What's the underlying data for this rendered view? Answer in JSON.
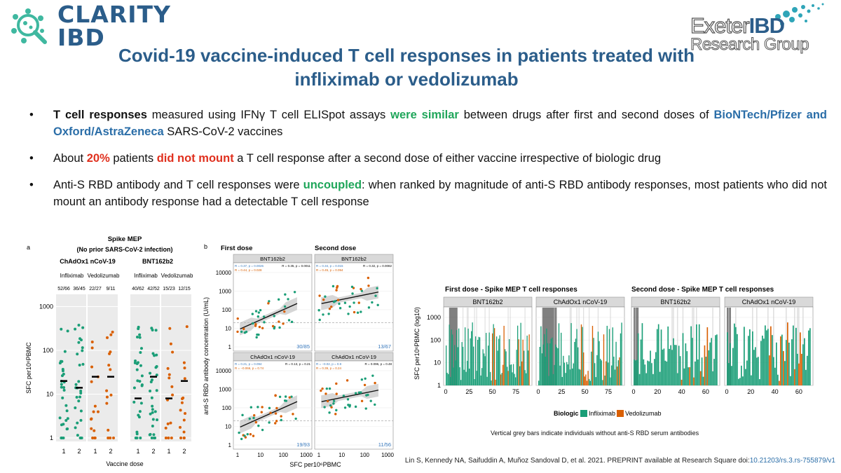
{
  "logo": {
    "line1": "CLARITY",
    "line2": "IBD"
  },
  "partner_logo": {
    "line1a": "Exeter",
    "line1b": "IBD",
    "line2": "Research Group"
  },
  "title": "Covid-19 vaccine-induced T cell responses in patients treated with infliximab or vedolizumab",
  "bullets": [
    {
      "parts": [
        "T cell responses",
        " measured using IFNγ T cell ELISpot assays ",
        "were similar",
        " between drugs after first and second doses of ",
        "BioNTech/Pfizer and Oxford/AstraZeneca",
        " SARS-CoV-2 vaccines"
      ]
    },
    {
      "parts": [
        "About ",
        "20%",
        " patients ",
        "did not mount",
        " a T cell response after a second dose of either vaccine irrespective of biologic drug"
      ]
    },
    {
      "parts": [
        "Anti-S RBD antibody and T cell responses were ",
        "uncoupled",
        ": when ranked by magnitude of anti-S RBD antibody responses, most patients who did not mount an antibody response had a detectable T cell response"
      ]
    }
  ],
  "colors": {
    "infliximab": "#1a9e77",
    "vedolizumab": "#d95f02",
    "title": "#2b5d8a"
  },
  "chart_data": [
    {
      "type": "scatter",
      "panel": "a",
      "title": "Spike MEP",
      "subtitle": "(No prior SARS-CoV-2 infection)",
      "groups": [
        "ChAdOx1 nCoV-19",
        "BNT162b2"
      ],
      "sub_labels": [
        "Infliximab",
        "Vedolizumab",
        "Infliximab",
        "Vedolizumab"
      ],
      "counts": [
        "52/66",
        "36/45",
        "22/27",
        "9/11",
        "40/62",
        "42/52",
        "15/23",
        "12/15"
      ],
      "xlabel": "Vaccine dose",
      "ylabel": "SFC per10⁶PBMC",
      "x_ticks": [
        "1",
        "2",
        "1",
        "2",
        "1",
        "2",
        "1",
        "2"
      ],
      "y_ticks": [
        "1",
        "10",
        "100",
        "1000"
      ],
      "medians": [
        20,
        14,
        25,
        25,
        8,
        25,
        8,
        20
      ]
    },
    {
      "type": "scatter",
      "panel": "b",
      "col_titles": [
        "First dose",
        "Second dose"
      ],
      "panels": [
        {
          "strip": "BNT162b2",
          "stats": [
            "R = 0.37, p = 0.0026",
            "R = 0.35, p = 0.0011",
            "R = 0.44, p = 0.028"
          ],
          "count": "30/85"
        },
        {
          "strip": "BNT162b2",
          "stats": [
            "R = 0.34, p = 0.015",
            "R = 0.32, p = 0.0082",
            "R = 0.45, p = 0.094"
          ],
          "count": "13/67"
        },
        {
          "strip": "ChAdOx1 nCoV-19",
          "stats": [
            "R = 0.21, p = 0.094",
            "R = 0.13, p = 0.21",
            "R = −0.066, p = 0.74"
          ],
          "count": "19/93"
        },
        {
          "strip": "ChAdOx1 nCoV-19",
          "stats": [
            "R = −0.02, p = 0.9",
            "R = 0.096, p = 0.48",
            "R = 0.39, p = 0.24"
          ],
          "count": "11/56"
        }
      ],
      "ylabel": "anti-S RBD antibody concentration (U/mL)",
      "xlabel": "SFC per10⁶PBMC",
      "y_ticks": [
        "1",
        "10",
        "100",
        "1000",
        "10000"
      ],
      "x_ticks": [
        "1",
        "10",
        "100",
        "1000"
      ]
    },
    {
      "type": "bar",
      "panel": "c",
      "titles": [
        "First dose - Spike MEP T cell responses",
        "Second dose - Spike MEP T cell responses"
      ],
      "strips": [
        "BNT162b2",
        "ChAdOx1 nCoV-19",
        "BNT162b2",
        "ChAdOx1 nCoV-19"
      ],
      "x_ticks": [
        [
          "0",
          "25",
          "50",
          "75"
        ],
        [
          "0",
          "25",
          "50",
          "75"
        ],
        [
          "0",
          "20",
          "40",
          "60"
        ],
        [
          "0",
          "20",
          "40",
          "60"
        ]
      ],
      "y_ticks": [
        "1",
        "10",
        "100",
        "1000"
      ],
      "ylabel": "SFC per10⁶PBMC (log10)",
      "legend": {
        "title": "Biologic",
        "items": [
          "Infliximab",
          "Vedolizumab"
        ]
      },
      "note": "Vertical grey bars indicate individuals without anti-S RBD serum antibodies"
    }
  ],
  "citation": {
    "text": "Lin S, Kennedy NA, Saifuddin A, Muñoz Sandoval D, et al. 2021. PREPRINT available at Research Square doi:",
    "doi": "10.21203/rs.3.rs-755879/v1"
  }
}
